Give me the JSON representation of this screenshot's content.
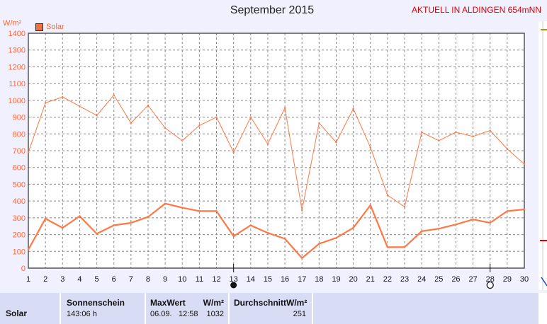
{
  "header": {
    "title": "September 2015",
    "station": "AKTUELL IN ALDINGEN 654mNN",
    "unit": "W/m²",
    "legend": "Solar"
  },
  "chart_data": {
    "type": "line",
    "title": "September 2015",
    "ylabel": "W/m²",
    "ylim": [
      0,
      1400
    ],
    "yticks": [
      0,
      100,
      200,
      300,
      400,
      500,
      600,
      700,
      800,
      900,
      1000,
      1100,
      1200,
      1300,
      1400
    ],
    "x": [
      1,
      2,
      3,
      4,
      5,
      6,
      7,
      8,
      9,
      10,
      11,
      12,
      13,
      14,
      15,
      16,
      17,
      18,
      19,
      20,
      21,
      22,
      23,
      24,
      25,
      26,
      27,
      28,
      29,
      30
    ],
    "series": [
      {
        "name": "Solar",
        "color": "#ff7744",
        "values": [
          690,
          985,
          1020,
          965,
          910,
          1032,
          865,
          970,
          835,
          760,
          850,
          900,
          690,
          900,
          740,
          955,
          345,
          865,
          750,
          950,
          720,
          435,
          365,
          810,
          760,
          810,
          785,
          820,
          710,
          620
        ]
      },
      {
        "color": "#ff7744",
        "values": [
          110,
          295,
          240,
          310,
          205,
          255,
          270,
          305,
          385,
          360,
          340,
          340,
          190,
          255,
          210,
          175,
          60,
          145,
          180,
          240,
          375,
          125,
          125,
          220,
          235,
          260,
          290,
          270,
          340,
          350
        ]
      }
    ],
    "markers": {
      "filled_day": 13,
      "open_day": 28
    },
    "grid": true,
    "legend_position": "top-left"
  },
  "info": {
    "row_label": "Solar",
    "sunshine": {
      "label": "Sonnenschein",
      "value": "143:06 h"
    },
    "max": {
      "label": "MaxWert",
      "unit": "W/m²",
      "date": "06.09.",
      "time": "12:58",
      "value": "1032"
    },
    "avg": {
      "label": "DurchschnittW/m²",
      "value": "251"
    }
  }
}
